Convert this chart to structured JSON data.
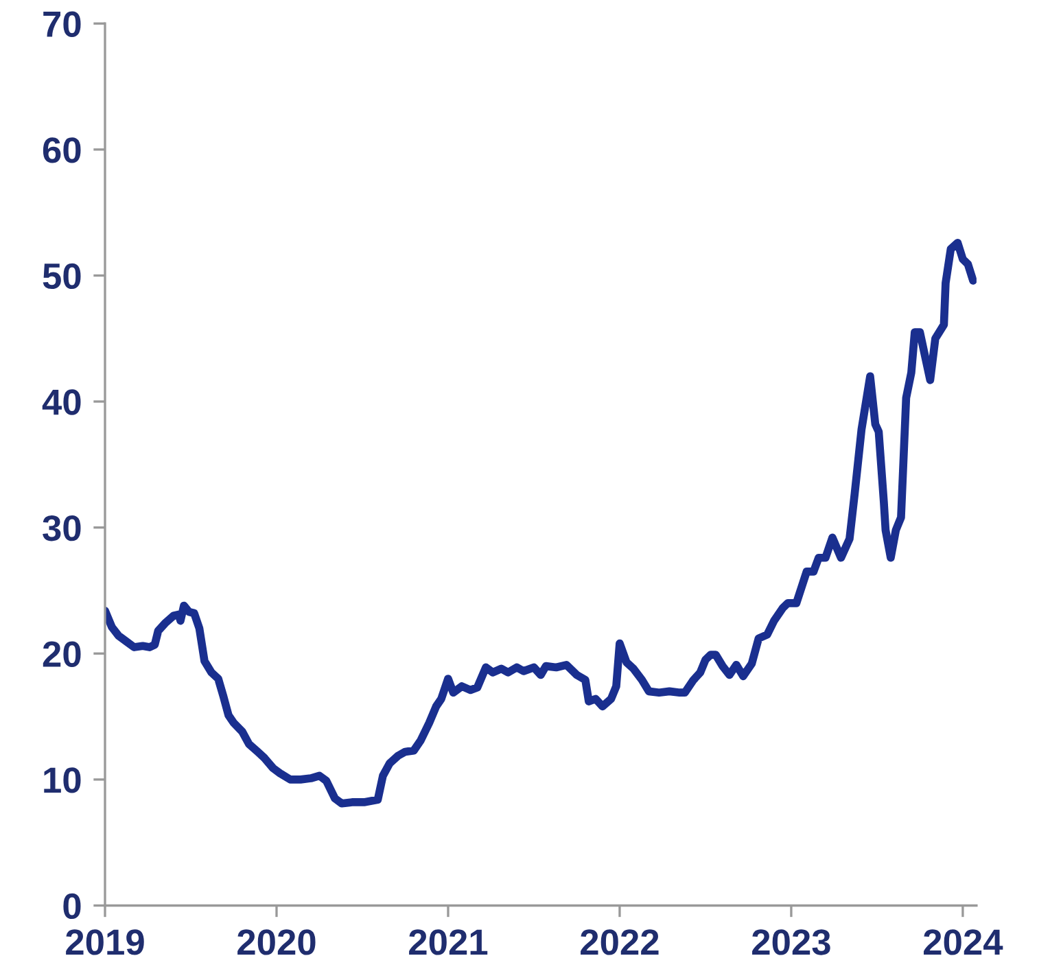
{
  "chart_data": {
    "type": "line",
    "xlim": [
      2019,
      2024.08
    ],
    "ylim": [
      0,
      70
    ],
    "xticks": [
      2019,
      2020,
      2021,
      2022,
      2023,
      2024
    ],
    "yticks": [
      0,
      10,
      20,
      30,
      40,
      50,
      60,
      70
    ],
    "grid": false,
    "marker": "none",
    "line_style": "solid",
    "series": [
      {
        "color": "#1a2f8f",
        "x": [
          2019.0,
          2019.04,
          2019.08,
          2019.13,
          2019.17,
          2019.22,
          2019.26,
          2019.29,
          2019.31,
          2019.35,
          2019.4,
          2019.43,
          2019.44,
          2019.46,
          2019.49,
          2019.52,
          2019.55,
          2019.58,
          2019.62,
          2019.66,
          2019.69,
          2019.72,
          2019.75,
          2019.8,
          2019.84,
          2019.89,
          2019.93,
          2019.98,
          2020.02,
          2020.08,
          2020.14,
          2020.2,
          2020.25,
          2020.29,
          2020.34,
          2020.38,
          2020.44,
          2020.51,
          2020.59,
          2020.62,
          2020.66,
          2020.71,
          2020.75,
          2020.8,
          2020.84,
          2020.89,
          2020.93,
          2020.96,
          2021.0,
          2021.03,
          2021.08,
          2021.13,
          2021.17,
          2021.22,
          2021.26,
          2021.31,
          2021.35,
          2021.4,
          2021.44,
          2021.5,
          2021.54,
          2021.57,
          2021.63,
          2021.69,
          2021.75,
          2021.8,
          2021.82,
          2021.86,
          2021.9,
          2021.95,
          2021.98,
          2022.0,
          2022.04,
          2022.08,
          2022.13,
          2022.17,
          2022.23,
          2022.29,
          2022.35,
          2022.38,
          2022.43,
          2022.47,
          2022.5,
          2022.53,
          2022.56,
          2022.6,
          2022.64,
          2022.68,
          2022.72,
          2022.77,
          2022.81,
          2022.86,
          2022.9,
          2022.95,
          2022.98,
          2023.03,
          2023.09,
          2023.13,
          2023.16,
          2023.2,
          2023.24,
          2023.29,
          2023.34,
          2023.37,
          2023.41,
          2023.46,
          2023.49,
          2023.51,
          2023.54,
          2023.55,
          2023.58,
          2023.61,
          2023.64,
          2023.67,
          2023.7,
          2023.72,
          2023.75,
          2023.81,
          2023.84,
          2023.89,
          2023.9,
          2023.93,
          2023.97,
          2024.0,
          2024.03,
          2024.06
        ],
        "values": [
          23.4,
          22.1,
          21.4,
          20.9,
          20.5,
          20.6,
          20.5,
          20.7,
          21.8,
          22.4,
          23.0,
          23.1,
          22.6,
          23.8,
          23.3,
          23.2,
          22.0,
          19.4,
          18.5,
          18.0,
          16.6,
          15.1,
          14.5,
          13.8,
          12.8,
          12.2,
          11.7,
          10.9,
          10.5,
          10.0,
          10.0,
          10.1,
          10.3,
          9.9,
          8.5,
          8.1,
          8.2,
          8.2,
          8.4,
          10.3,
          11.3,
          11.9,
          12.2,
          12.3,
          13.1,
          14.5,
          15.8,
          16.4,
          18.0,
          16.9,
          17.4,
          17.1,
          17.3,
          18.9,
          18.5,
          18.8,
          18.5,
          18.9,
          18.6,
          18.9,
          18.3,
          19.0,
          18.9,
          19.1,
          18.3,
          17.9,
          16.2,
          16.4,
          15.8,
          16.4,
          17.4,
          20.8,
          19.3,
          18.8,
          17.9,
          17.0,
          16.9,
          17.0,
          16.9,
          16.9,
          17.9,
          18.5,
          19.5,
          19.9,
          19.9,
          19.0,
          18.3,
          19.1,
          18.2,
          19.2,
          21.2,
          21.5,
          22.6,
          23.6,
          24.0,
          24.0,
          26.5,
          26.5,
          27.6,
          27.6,
          29.2,
          27.6,
          29.1,
          32.7,
          37.8,
          42.0,
          38.2,
          37.6,
          32.0,
          29.8,
          27.6,
          29.8,
          30.8,
          40.3,
          42.3,
          45.5,
          45.5,
          41.7,
          45.0,
          46.1,
          49.4,
          52.1,
          52.6,
          51.3,
          50.9,
          49.6
        ]
      }
    ]
  }
}
